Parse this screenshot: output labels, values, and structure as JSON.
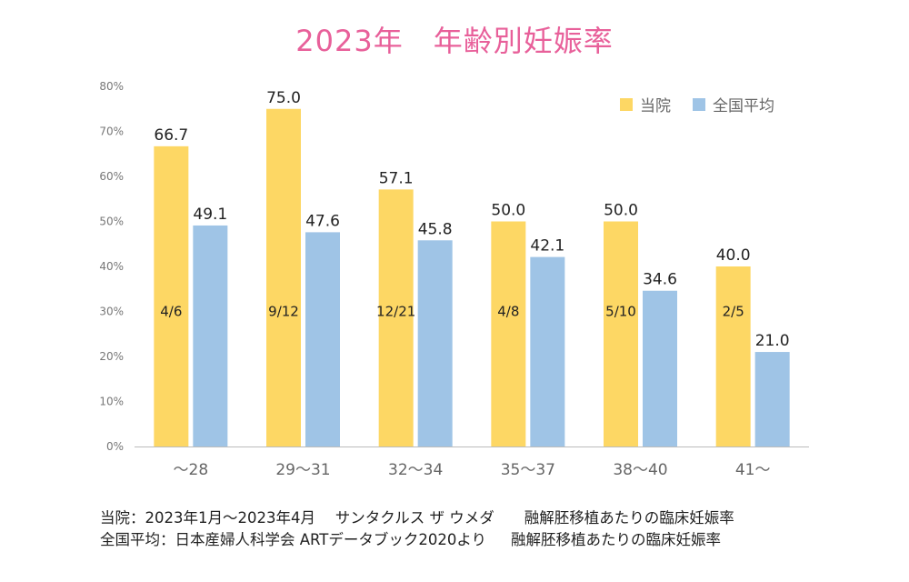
{
  "chart_data": {
    "type": "bar",
    "title": "2023年　年齢別妊娠率",
    "categories": [
      "～28",
      "29～31",
      "32～34",
      "35～37",
      "38～40",
      "41～"
    ],
    "series": [
      {
        "name": "当院",
        "color": "#fdd764",
        "values": [
          66.7,
          75.0,
          57.1,
          50.0,
          50.0,
          40.0
        ],
        "inner_labels": [
          "4/6",
          "9/12",
          "12/21",
          "4/8",
          "5/10",
          "2/5"
        ]
      },
      {
        "name": "全国平均",
        "color": "#9fc4e6",
        "values": [
          49.1,
          47.6,
          45.8,
          42.1,
          34.6,
          21.0
        ]
      }
    ],
    "ylim": [
      0,
      80
    ],
    "yticks": [
      "0%",
      "10%",
      "20%",
      "30%",
      "40%",
      "50%",
      "60%",
      "70%",
      "80%"
    ],
    "grid": false,
    "legend": "top-right"
  },
  "footnotes": [
    "当院：2023年1月～2023年4月　 サンタクルス ザ ウメダ　　融解胚移植あたりの臨床妊娠率",
    "全国平均：日本産婦人科学会 ARTデータブック2020より　  融解胚移植あたりの臨床妊娠率"
  ]
}
